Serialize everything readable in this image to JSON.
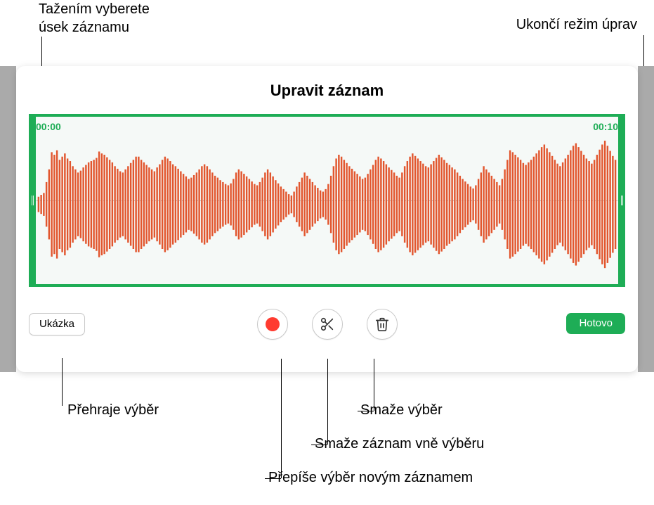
{
  "callouts": {
    "drag_select": "Tažením vyberete\núsek záznamu",
    "exit_edit": "Ukončí režim úprav",
    "play_sel": "Přehraje výběr",
    "delete_sel": "Smaže výběr",
    "trim_outside": "Smaže záznam vně výběru",
    "overwrite": "Přepíše výběr novým záznamem"
  },
  "editor": {
    "title": "Upravit záznam",
    "time_start": "00:00",
    "time_end": "00:10",
    "preview_label": "Ukázka",
    "done_label": "Hotovo"
  },
  "colors": {
    "accent_green": "#1ead56",
    "waveform": "#e2562e",
    "record_red": "#ff3b30",
    "wave_bg": "#f5f9f7",
    "gutter": "#aaaaaa",
    "btn_border": "#c8c8c8"
  },
  "waveform": {
    "color": "#e2562e",
    "bar_count": 220,
    "amplitudes": [
      0.12,
      0.15,
      0.18,
      0.35,
      0.55,
      0.82,
      0.78,
      0.85,
      0.7,
      0.75,
      0.8,
      0.72,
      0.68,
      0.6,
      0.55,
      0.5,
      0.53,
      0.58,
      0.62,
      0.66,
      0.68,
      0.7,
      0.73,
      0.83,
      0.8,
      0.78,
      0.74,
      0.7,
      0.66,
      0.6,
      0.56,
      0.52,
      0.5,
      0.55,
      0.6,
      0.65,
      0.7,
      0.75,
      0.75,
      0.7,
      0.66,
      0.62,
      0.58,
      0.55,
      0.52,
      0.58,
      0.63,
      0.7,
      0.75,
      0.72,
      0.68,
      0.63,
      0.6,
      0.56,
      0.52,
      0.48,
      0.44,
      0.4,
      0.42,
      0.46,
      0.5,
      0.55,
      0.6,
      0.63,
      0.6,
      0.55,
      0.5,
      0.45,
      0.42,
      0.38,
      0.35,
      0.32,
      0.3,
      0.33,
      0.4,
      0.5,
      0.55,
      0.52,
      0.48,
      0.44,
      0.4,
      0.36,
      0.32,
      0.3,
      0.35,
      0.42,
      0.5,
      0.55,
      0.5,
      0.44,
      0.38,
      0.33,
      0.28,
      0.24,
      0.2,
      0.16,
      0.14,
      0.2,
      0.28,
      0.35,
      0.42,
      0.5,
      0.45,
      0.4,
      0.35,
      0.3,
      0.26,
      0.22,
      0.2,
      0.24,
      0.32,
      0.45,
      0.6,
      0.72,
      0.78,
      0.75,
      0.7,
      0.65,
      0.6,
      0.56,
      0.52,
      0.48,
      0.44,
      0.4,
      0.42,
      0.48,
      0.55,
      0.62,
      0.7,
      0.75,
      0.72,
      0.68,
      0.63,
      0.58,
      0.54,
      0.5,
      0.45,
      0.42,
      0.5,
      0.6,
      0.68,
      0.75,
      0.8,
      0.76,
      0.72,
      0.68,
      0.64,
      0.6,
      0.58,
      0.63,
      0.68,
      0.73,
      0.78,
      0.74,
      0.7,
      0.65,
      0.62,
      0.58,
      0.55,
      0.5,
      0.45,
      0.4,
      0.36,
      0.32,
      0.28,
      0.25,
      0.3,
      0.4,
      0.5,
      0.6,
      0.55,
      0.5,
      0.45,
      0.4,
      0.35,
      0.3,
      0.4,
      0.55,
      0.7,
      0.85,
      0.82,
      0.78,
      0.74,
      0.7,
      0.65,
      0.62,
      0.66,
      0.7,
      0.75,
      0.8,
      0.85,
      0.9,
      0.94,
      0.88,
      0.82,
      0.76,
      0.7,
      0.64,
      0.6,
      0.66,
      0.72,
      0.78,
      0.85,
      0.92,
      0.96,
      0.9,
      0.84,
      0.78,
      0.72,
      0.68,
      0.64,
      0.7,
      0.78,
      0.86,
      0.94,
      1.0,
      0.92,
      0.84,
      0.76,
      0.7
    ]
  }
}
